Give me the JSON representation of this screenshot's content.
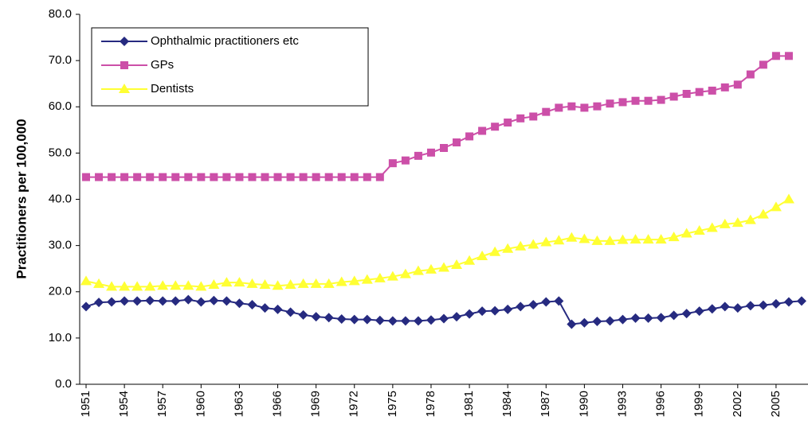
{
  "chart_data": {
    "type": "line",
    "y_label": "Practitioners per 100,000",
    "categories": [
      "1951",
      null,
      null,
      "1954",
      null,
      null,
      "1957",
      null,
      null,
      "1960",
      null,
      null,
      "1963",
      null,
      null,
      "1966",
      null,
      null,
      "1969",
      null,
      null,
      "1972",
      null,
      null,
      "1975",
      null,
      null,
      "1978",
      null,
      null,
      "1981",
      null,
      null,
      "1984",
      null,
      null,
      "1987",
      null,
      null,
      "1990",
      null,
      null,
      "1993",
      null,
      null,
      "1996",
      null,
      null,
      "1999",
      null,
      null,
      "2002",
      null,
      null,
      "2005",
      null,
      null
    ],
    "series": [
      {
        "name": "Ophthalmic practitioners etc",
        "color": "#262a80",
        "marker": "diamond",
        "values": [
          16.8,
          17.7,
          17.8,
          18.0,
          18.0,
          18.1,
          18.0,
          18.0,
          18.3,
          17.8,
          18.1,
          18.0,
          17.5,
          17.2,
          16.5,
          16.2,
          15.6,
          15.0,
          14.6,
          14.4,
          14.1,
          14.0,
          14.0,
          13.8,
          13.7,
          13.7,
          13.7,
          13.9,
          14.2,
          14.6,
          15.2,
          15.8,
          15.9,
          16.2,
          16.8,
          17.2,
          17.8,
          18.0,
          13.0,
          13.3,
          13.6,
          13.7,
          14.0,
          14.3,
          14.3,
          14.4,
          14.9,
          15.3,
          15.8,
          16.3,
          16.8,
          16.5,
          17.0,
          17.1,
          17.4,
          17.8,
          18.0
        ]
      },
      {
        "name": "GPs",
        "color": "#cc4fa8",
        "marker": "square",
        "values": [
          44.8,
          44.8,
          44.8,
          44.8,
          44.8,
          44.8,
          44.8,
          44.8,
          44.8,
          44.8,
          44.8,
          44.8,
          44.8,
          44.8,
          44.8,
          44.8,
          44.8,
          44.8,
          44.8,
          44.8,
          44.8,
          44.8,
          44.8,
          44.8,
          47.8,
          48.4,
          49.4,
          50.1,
          51.1,
          52.3,
          53.6,
          54.8,
          55.7,
          56.6,
          57.5,
          57.9,
          58.9,
          59.8,
          60.1,
          59.8,
          60.1,
          60.7,
          61.0,
          61.3,
          61.3,
          61.5,
          62.2,
          62.8,
          63.2,
          63.5,
          64.2,
          64.8,
          67.0,
          69.1,
          71.0,
          71.0,
          null
        ]
      },
      {
        "name": "Dentists",
        "color": "#ffff33",
        "marker": "triangle",
        "values": [
          22.3,
          21.7,
          21.1,
          21.1,
          21.1,
          21.1,
          21.3,
          21.3,
          21.3,
          21.1,
          21.5,
          22.0,
          22.0,
          21.7,
          21.5,
          21.3,
          21.5,
          21.7,
          21.7,
          21.7,
          22.1,
          22.3,
          22.6,
          22.9,
          23.3,
          23.8,
          24.5,
          24.8,
          25.2,
          25.8,
          26.7,
          27.7,
          28.6,
          29.3,
          29.8,
          30.2,
          30.7,
          31.1,
          31.7,
          31.4,
          31.0,
          31.0,
          31.2,
          31.3,
          31.3,
          31.3,
          31.8,
          32.6,
          33.2,
          33.8,
          34.6,
          34.9,
          35.5,
          36.7,
          38.3,
          40.0,
          null
        ]
      }
    ],
    "ylim": [
      0,
      80
    ],
    "yticks": [
      {
        "value": 0,
        "label": "0.0"
      },
      {
        "value": 10,
        "label": "10.0"
      },
      {
        "value": 20,
        "label": "20.0"
      },
      {
        "value": 30,
        "label": "30.0"
      },
      {
        "value": 40,
        "label": "40.0"
      },
      {
        "value": 50,
        "label": "50.0"
      },
      {
        "value": 60,
        "label": "60.0"
      },
      {
        "value": 70,
        "label": "70.0"
      },
      {
        "value": 80,
        "label": "80.0"
      }
    ],
    "grid": false,
    "legend": "upper left"
  }
}
